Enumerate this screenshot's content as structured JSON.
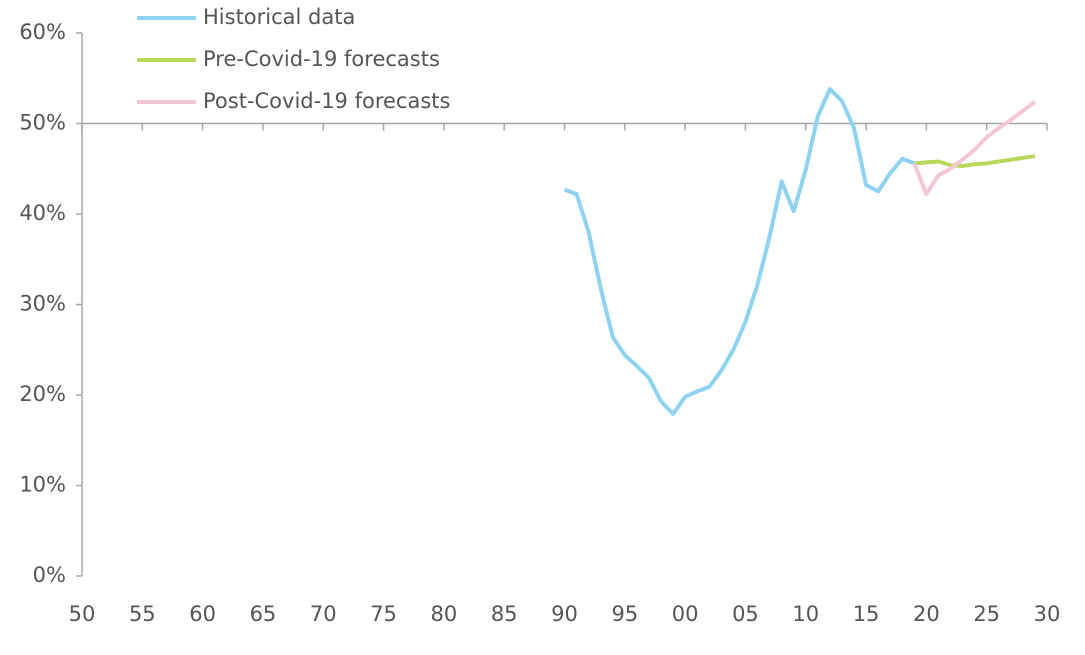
{
  "chart_data": {
    "type": "line",
    "x": [
      1990,
      1991,
      1992,
      1993,
      1994,
      1995,
      1996,
      1997,
      1998,
      1999,
      2000,
      2001,
      2002,
      2003,
      2004,
      2005,
      2006,
      2007,
      2008,
      2009,
      2010,
      2011,
      2012,
      2013,
      2014,
      2015,
      2016,
      2017,
      2018,
      2019,
      2020,
      2021,
      2022,
      2023,
      2024,
      2025,
      2026,
      2027,
      2028,
      2029
    ],
    "series": [
      {
        "name": "Historical data",
        "color": "#8fd3f2",
        "values": [
          42.7,
          42.2,
          38.0,
          31.8,
          26.4,
          24.4,
          23.2,
          21.9,
          19.3,
          17.9,
          19.8,
          20.4,
          20.9,
          22.7,
          25.0,
          28.1,
          32.2,
          37.5,
          43.6,
          40.3,
          44.9,
          50.8,
          53.8,
          52.5,
          49.5,
          43.2,
          42.5,
          44.5,
          46.1,
          45.6,
          null,
          null,
          null,
          null,
          null,
          null,
          null,
          null,
          null,
          null
        ]
      },
      {
        "name": "Pre-Covid-19 forecasts",
        "color": "#b9d75a",
        "values": [
          null,
          null,
          null,
          null,
          null,
          null,
          null,
          null,
          null,
          null,
          null,
          null,
          null,
          null,
          null,
          null,
          null,
          null,
          null,
          null,
          null,
          null,
          null,
          null,
          null,
          null,
          null,
          null,
          null,
          45.6,
          45.7,
          45.8,
          45.4,
          45.3,
          45.5,
          45.6,
          45.8,
          46.0,
          46.2,
          46.4
        ]
      },
      {
        "name": "Post-Covid-19 forecasts",
        "color": "#f2c6d3",
        "values": [
          null,
          null,
          null,
          null,
          null,
          null,
          null,
          null,
          null,
          null,
          null,
          null,
          null,
          null,
          null,
          null,
          null,
          null,
          null,
          null,
          null,
          null,
          null,
          null,
          null,
          null,
          null,
          null,
          null,
          45.6,
          42.2,
          44.3,
          45.0,
          46.0,
          47.1,
          48.5,
          49.5,
          50.4,
          51.4,
          52.4
        ]
      }
    ],
    "xlim": [
      1950,
      2030
    ],
    "xticks": [
      {
        "value": 1950,
        "label": "50"
      },
      {
        "value": 1955,
        "label": "55"
      },
      {
        "value": 1960,
        "label": "60"
      },
      {
        "value": 1965,
        "label": "65"
      },
      {
        "value": 1970,
        "label": "70"
      },
      {
        "value": 1975,
        "label": "75"
      },
      {
        "value": 1980,
        "label": "80"
      },
      {
        "value": 1985,
        "label": "85"
      },
      {
        "value": 1990,
        "label": "90"
      },
      {
        "value": 1995,
        "label": "95"
      },
      {
        "value": 2000,
        "label": "00"
      },
      {
        "value": 2005,
        "label": "05"
      },
      {
        "value": 2010,
        "label": "10"
      },
      {
        "value": 2015,
        "label": "15"
      },
      {
        "value": 2020,
        "label": "20"
      },
      {
        "value": 2025,
        "label": "25"
      },
      {
        "value": 2030,
        "label": "30"
      }
    ],
    "ylim": [
      0,
      60
    ],
    "yticks": [
      {
        "value": 0,
        "label": "0%"
      },
      {
        "value": 10,
        "label": "10%"
      },
      {
        "value": 20,
        "label": "20%"
      },
      {
        "value": 30,
        "label": "30%"
      },
      {
        "value": 40,
        "label": "40%"
      },
      {
        "value": 50,
        "label": "50%"
      },
      {
        "value": 60,
        "label": "60%"
      }
    ],
    "x_axis_crosses_at": 50,
    "legend": "top-left"
  }
}
